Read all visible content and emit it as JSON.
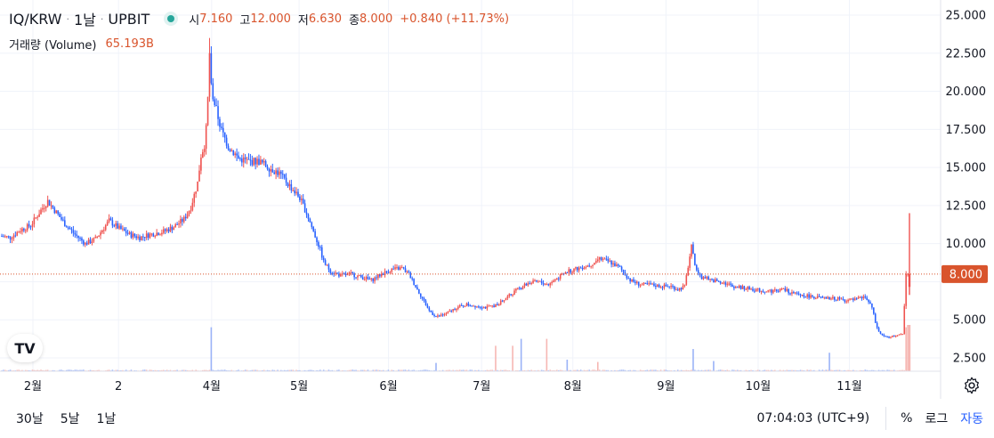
{
  "legend": {
    "symbol": "IQ/KRW",
    "interval": "1날",
    "exchange": "UPBIT",
    "open_key": "시",
    "open_val": "7.160",
    "high_key": "고",
    "high_val": "12.000",
    "low_key": "저",
    "low_val": "6.630",
    "close_key": "종",
    "close_val": "8.000",
    "change": "+0.840 (+11.73%)",
    "volume_label": "거래량 (Volume)",
    "volume_val": "65.193B"
  },
  "footer": {
    "ranges": [
      "30날",
      "5날",
      "1날"
    ],
    "clock": "07:04:03 (UTC+9)",
    "percent": "%",
    "log": "로그",
    "auto": "자동"
  },
  "logo": "TV",
  "colors": {
    "up": "#ef5350",
    "down": "#2962ff",
    "price_line": "#d9542c",
    "grid": "#f0f3fa",
    "vol_up": "#f6b7b3",
    "vol_down": "#9bb3f7"
  },
  "chart_data": {
    "type": "candlestick",
    "price_axis": {
      "ticks": [
        "25.000",
        "22.500",
        "20.000",
        "17.500",
        "15.000",
        "12.500",
        "10.000",
        "5.000",
        "2.500"
      ],
      "tick_values": [
        25,
        22.5,
        20,
        17.5,
        15,
        12.5,
        10,
        5,
        2.5
      ],
      "ylim": [
        2.5,
        25
      ],
      "current_price_label": "8.000",
      "current_price": 8.0
    },
    "time_axis": {
      "labels": [
        "2월",
        "2",
        "4월",
        "5월",
        "6월",
        "7월",
        "8월",
        "9월",
        "10월",
        "11월"
      ],
      "label_positions": [
        0.035,
        0.126,
        0.225,
        0.318,
        0.413,
        0.512,
        0.609,
        0.708,
        0.806,
        0.903
      ]
    },
    "grid": true,
    "last_candle": {
      "open": 7.16,
      "high": 12.0,
      "low": 6.63,
      "close": 8.0
    },
    "price_path": [
      [
        0,
        10.5
      ],
      [
        6,
        10.4
      ],
      [
        12,
        10.9
      ],
      [
        18,
        11.2
      ],
      [
        24,
        12.2
      ],
      [
        28,
        12.8
      ],
      [
        32,
        12.2
      ],
      [
        38,
        11.3
      ],
      [
        44,
        10.6
      ],
      [
        50,
        10.0
      ],
      [
        56,
        10.3
      ],
      [
        60,
        10.9
      ],
      [
        64,
        11.5
      ],
      [
        70,
        11.0
      ],
      [
        76,
        10.6
      ],
      [
        82,
        10.4
      ],
      [
        88,
        10.6
      ],
      [
        96,
        10.8
      ],
      [
        102,
        11.1
      ],
      [
        108,
        11.6
      ],
      [
        112,
        12.4
      ],
      [
        116,
        14.0
      ],
      [
        118,
        15.8
      ],
      [
        120,
        16.5
      ],
      [
        121,
        17.5
      ],
      [
        122,
        19.5
      ],
      [
        123,
        22.5
      ],
      [
        124,
        20.2
      ],
      [
        126,
        19.2
      ],
      [
        130,
        17.4
      ],
      [
        134,
        16.4
      ],
      [
        140,
        15.6
      ],
      [
        146,
        15.4
      ],
      [
        152,
        15.4
      ],
      [
        158,
        15.0
      ],
      [
        164,
        14.6
      ],
      [
        170,
        13.8
      ],
      [
        176,
        13.0
      ],
      [
        180,
        12.0
      ],
      [
        184,
        10.8
      ],
      [
        188,
        9.6
      ],
      [
        190,
        8.8
      ],
      [
        194,
        8.2
      ],
      [
        200,
        7.9
      ],
      [
        206,
        8.0
      ],
      [
        212,
        7.8
      ],
      [
        218,
        7.6
      ],
      [
        224,
        8.0
      ],
      [
        230,
        8.3
      ],
      [
        236,
        8.4
      ],
      [
        240,
        8.0
      ],
      [
        244,
        7.2
      ],
      [
        248,
        6.4
      ],
      [
        252,
        5.6
      ],
      [
        256,
        5.2
      ],
      [
        262,
        5.4
      ],
      [
        268,
        5.8
      ],
      [
        274,
        6.0
      ],
      [
        280,
        5.9
      ],
      [
        286,
        5.8
      ],
      [
        292,
        6.0
      ],
      [
        298,
        6.5
      ],
      [
        304,
        7.0
      ],
      [
        310,
        7.4
      ],
      [
        316,
        7.5
      ],
      [
        322,
        7.3
      ],
      [
        328,
        7.8
      ],
      [
        334,
        8.2
      ],
      [
        340,
        8.4
      ],
      [
        346,
        8.6
      ],
      [
        352,
        9.0
      ],
      [
        358,
        8.8
      ],
      [
        364,
        8.4
      ],
      [
        370,
        7.6
      ],
      [
        376,
        7.3
      ],
      [
        382,
        7.3
      ],
      [
        388,
        7.2
      ],
      [
        394,
        7.2
      ],
      [
        398,
        7.0
      ],
      [
        402,
        7.2
      ],
      [
        406,
        9.8
      ],
      [
        408,
        8.6
      ],
      [
        412,
        7.8
      ],
      [
        418,
        7.6
      ],
      [
        424,
        7.5
      ],
      [
        430,
        7.2
      ],
      [
        436,
        7.1
      ],
      [
        442,
        7.0
      ],
      [
        448,
        6.9
      ],
      [
        454,
        6.9
      ],
      [
        460,
        7.0
      ],
      [
        466,
        6.7
      ],
      [
        472,
        6.6
      ],
      [
        478,
        6.5
      ],
      [
        484,
        6.4
      ],
      [
        490,
        6.4
      ],
      [
        496,
        6.3
      ],
      [
        502,
        6.3
      ],
      [
        508,
        6.5
      ],
      [
        512,
        5.8
      ],
      [
        514,
        4.8
      ],
      [
        516,
        4.2
      ],
      [
        518,
        4.0
      ],
      [
        522,
        3.8
      ],
      [
        526,
        4.0
      ],
      [
        530,
        4.0
      ],
      [
        532,
        8.0
      ]
    ],
    "volume_spikes": [
      [
        123,
        0.95
      ],
      [
        290,
        0.55
      ],
      [
        300,
        0.55
      ],
      [
        305,
        0.7
      ],
      [
        320,
        0.7
      ],
      [
        406,
        0.48
      ],
      [
        532,
        1.0
      ],
      [
        531,
        0.95
      ],
      [
        486,
        0.4
      ],
      [
        418,
        0.22
      ],
      [
        350,
        0.2
      ],
      [
        332,
        0.25
      ],
      [
        255,
        0.18
      ]
    ]
  }
}
